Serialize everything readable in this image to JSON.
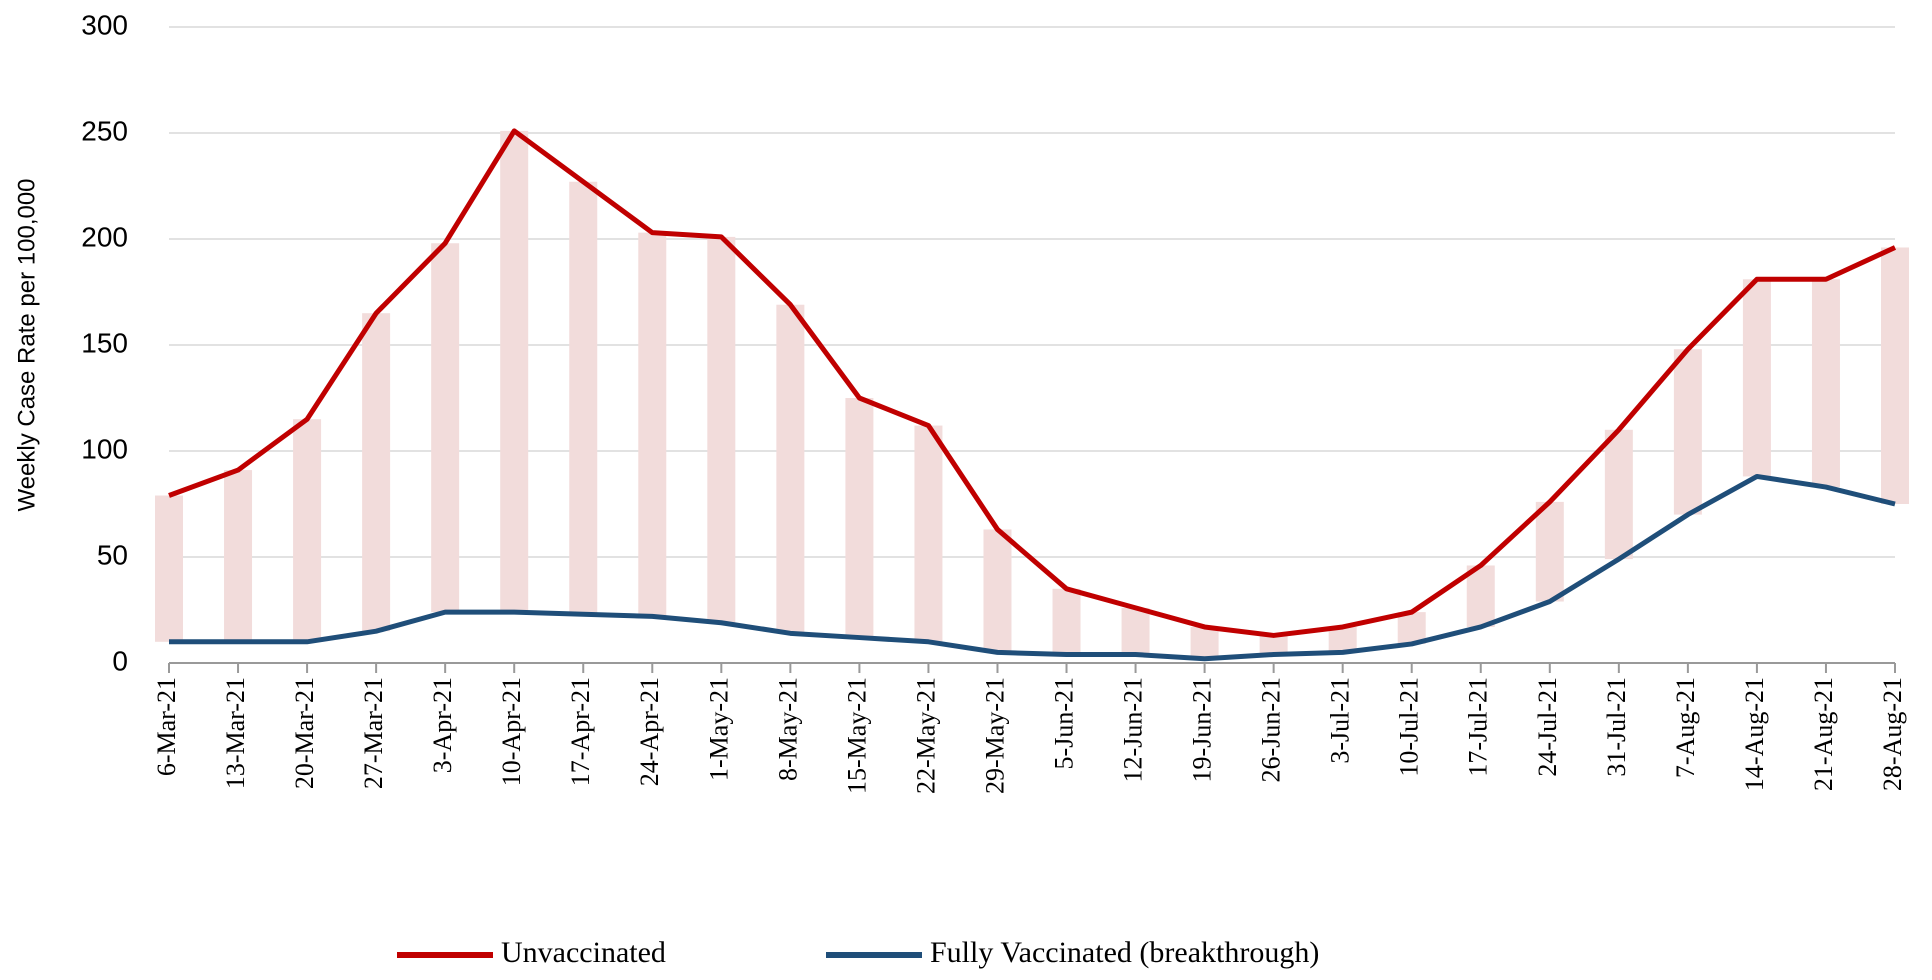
{
  "chart_data": {
    "type": "line",
    "y_label": "Weekly Case Rate per 100,000",
    "categories": [
      "6-Mar-21",
      "13-Mar-21",
      "20-Mar-21",
      "27-Mar-21",
      "3-Apr-21",
      "10-Apr-21",
      "17-Apr-21",
      "24-Apr-21",
      "1-May-21",
      "8-May-21",
      "15-May-21",
      "22-May-21",
      "29-May-21",
      "5-Jun-21",
      "12-Jun-21",
      "19-Jun-21",
      "26-Jun-21",
      "3-Jul-21",
      "10-Jul-21",
      "17-Jul-21",
      "24-Jul-21",
      "31-Jul-21",
      "7-Aug-21",
      "14-Aug-21",
      "21-Aug-21",
      "28-Aug-21"
    ],
    "series": [
      {
        "name": "Unvaccinated",
        "color": "#c00000",
        "values": [
          79,
          91,
          115,
          165,
          198,
          251,
          227,
          203,
          201,
          169,
          125,
          112,
          63,
          35,
          26,
          17,
          13,
          17,
          24,
          46,
          76,
          110,
          148,
          181,
          181,
          196
        ]
      },
      {
        "name": "Fully Vaccinated (breakthrough)",
        "color": "#1f4e79",
        "values": [
          10,
          10,
          10,
          15,
          24,
          24,
          23,
          22,
          19,
          14,
          12,
          10,
          5,
          4,
          4,
          2,
          4,
          5,
          9,
          17,
          29,
          49,
          70,
          88,
          83,
          75
        ]
      }
    ],
    "band_color": "#f2dcdb",
    "ylim": [
      0,
      300
    ],
    "yticks": [
      0,
      50,
      100,
      150,
      200,
      250,
      300
    ],
    "grid": true
  }
}
